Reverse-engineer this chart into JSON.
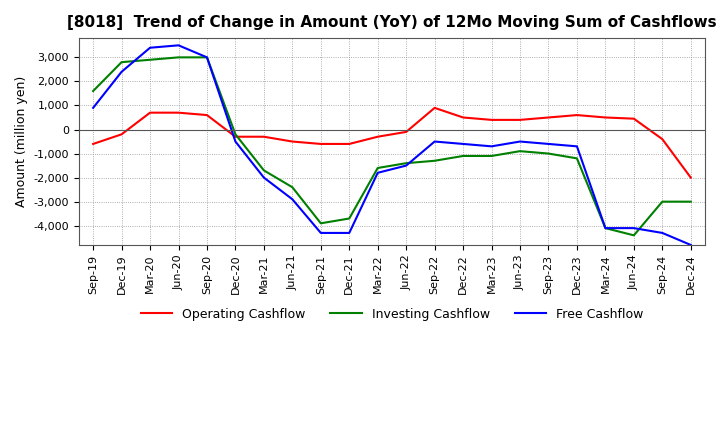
{
  "title": "[8018]  Trend of Change in Amount (YoY) of 12Mo Moving Sum of Cashflows",
  "ylabel": "Amount (million yen)",
  "x_labels": [
    "Sep-19",
    "Dec-19",
    "Mar-20",
    "Jun-20",
    "Sep-20",
    "Dec-20",
    "Mar-21",
    "Jun-21",
    "Sep-21",
    "Dec-21",
    "Mar-22",
    "Jun-22",
    "Sep-22",
    "Dec-22",
    "Mar-23",
    "Jun-23",
    "Sep-23",
    "Dec-23",
    "Mar-24",
    "Jun-24",
    "Sep-24",
    "Dec-24"
  ],
  "operating": [
    -600,
    -200,
    700,
    700,
    600,
    -300,
    -300,
    -500,
    -600,
    -600,
    -300,
    -100,
    900,
    500,
    400,
    400,
    500,
    600,
    500,
    450,
    -400,
    -2000
  ],
  "investing": [
    1600,
    2800,
    2900,
    3000,
    3000,
    -200,
    -1700,
    -2400,
    -3900,
    -3700,
    -1600,
    -1400,
    -1300,
    -1100,
    -1100,
    -900,
    -1000,
    -1200,
    -4100,
    -4400,
    -3000,
    -3000
  ],
  "free": [
    900,
    2400,
    3400,
    3500,
    3000,
    -500,
    -2000,
    -2900,
    -4300,
    -4300,
    -1800,
    -1500,
    -500,
    -600,
    -700,
    -500,
    -600,
    -700,
    -4100,
    -4100,
    -4300,
    -4800
  ],
  "operating_color": "#ff0000",
  "investing_color": "#008000",
  "free_color": "#0000ff",
  "ylim": [
    -4800,
    3800
  ],
  "yticks": [
    -4000,
    -3000,
    -2000,
    -1000,
    0,
    1000,
    2000,
    3000
  ],
  "grid": true,
  "background_color": "#ffffff",
  "legend_labels": [
    "Operating Cashflow",
    "Investing Cashflow",
    "Free Cashflow"
  ]
}
